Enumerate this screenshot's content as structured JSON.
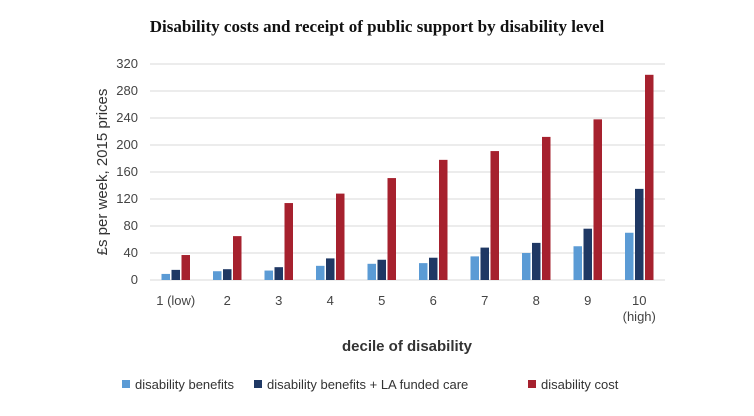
{
  "chart_data": {
    "type": "bar",
    "title": "Disability costs and receipt of public support by disability level",
    "xlabel": "decile of disability",
    "ylabel": "£s per  week, 2015 prices",
    "ylim": [
      0,
      320
    ],
    "yticks": [
      0,
      40,
      80,
      120,
      160,
      200,
      240,
      280,
      320
    ],
    "grid": true,
    "legend_position": "bottom",
    "categories": [
      [
        "1 (low)"
      ],
      [
        "2"
      ],
      [
        "3"
      ],
      [
        "4"
      ],
      [
        "5"
      ],
      [
        "6"
      ],
      [
        "7"
      ],
      [
        "8"
      ],
      [
        "9"
      ],
      [
        "10",
        "(high)"
      ]
    ],
    "series": [
      {
        "name": "disability benefits",
        "color": "#5b9bd5",
        "values": [
          9,
          13,
          14,
          21,
          24,
          25,
          35,
          40,
          50,
          70
        ]
      },
      {
        "name": "disability benefits + LA funded care",
        "color": "#1f3864",
        "values": [
          15,
          16,
          19,
          32,
          30,
          33,
          48,
          55,
          76,
          135
        ]
      },
      {
        "name": "disability cost",
        "color": "#a6212e",
        "values": [
          37,
          65,
          114,
          128,
          151,
          178,
          191,
          212,
          238,
          304
        ]
      }
    ]
  }
}
